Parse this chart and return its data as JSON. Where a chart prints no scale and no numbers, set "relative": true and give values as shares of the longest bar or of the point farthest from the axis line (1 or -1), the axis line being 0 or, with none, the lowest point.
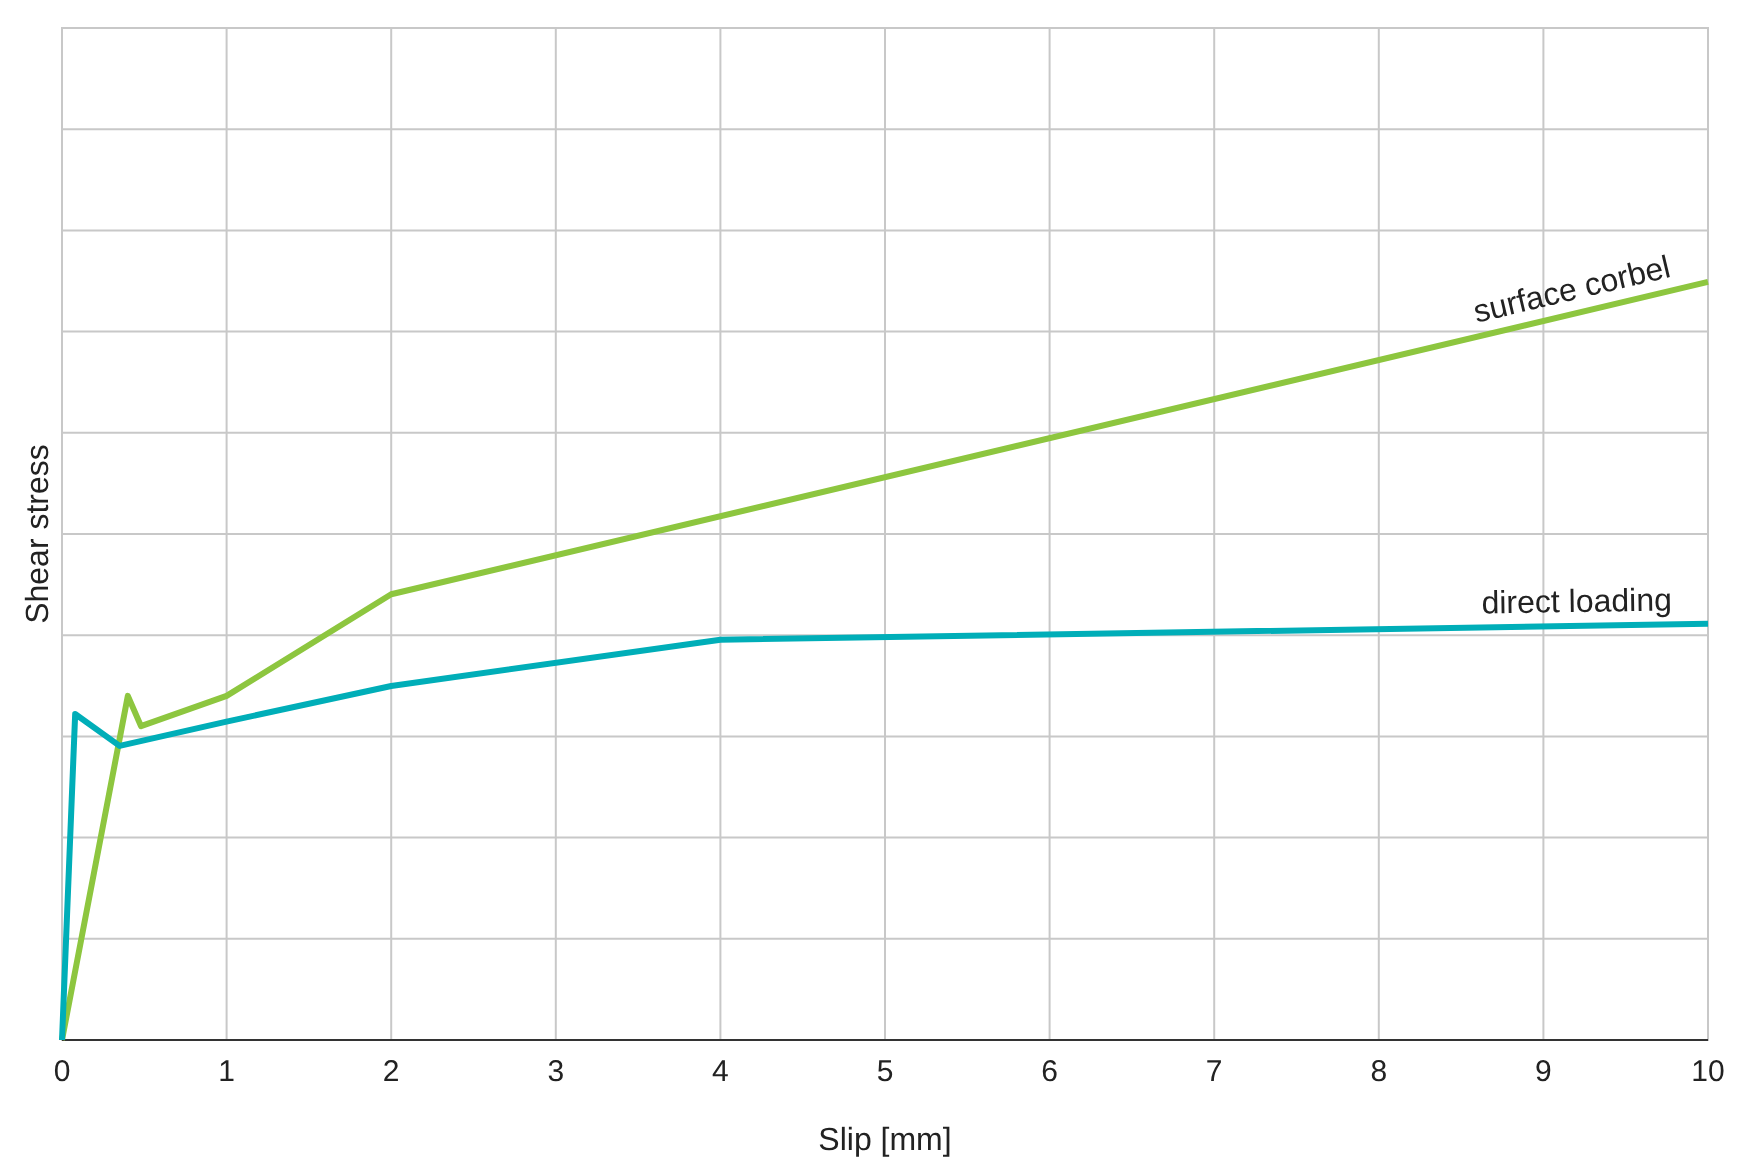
{
  "chart_data": {
    "type": "line",
    "relative": true,
    "xlabel": "Slip [mm]",
    "ylabel": "Shear stress",
    "xlim": [
      0,
      10
    ],
    "xticks": [
      0,
      1,
      2,
      3,
      4,
      5,
      6,
      7,
      8,
      9,
      10
    ],
    "grid": true,
    "marker": "none",
    "line_style": "solid",
    "series": [
      {
        "name": "surface corbel",
        "color": "#8dc63f",
        "x": [
          0,
          0.4,
          0.48,
          1,
          2,
          10
        ],
        "values": [
          0,
          0.454,
          0.414,
          0.454,
          0.588,
          1
        ]
      },
      {
        "name": "direct loading",
        "color": "#00aeb8",
        "x": [
          0,
          0.08,
          0.35,
          1,
          2,
          4,
          10
        ],
        "values": [
          0,
          0.43,
          0.388,
          0.42,
          0.467,
          0.528,
          0.549
        ]
      }
    ]
  }
}
